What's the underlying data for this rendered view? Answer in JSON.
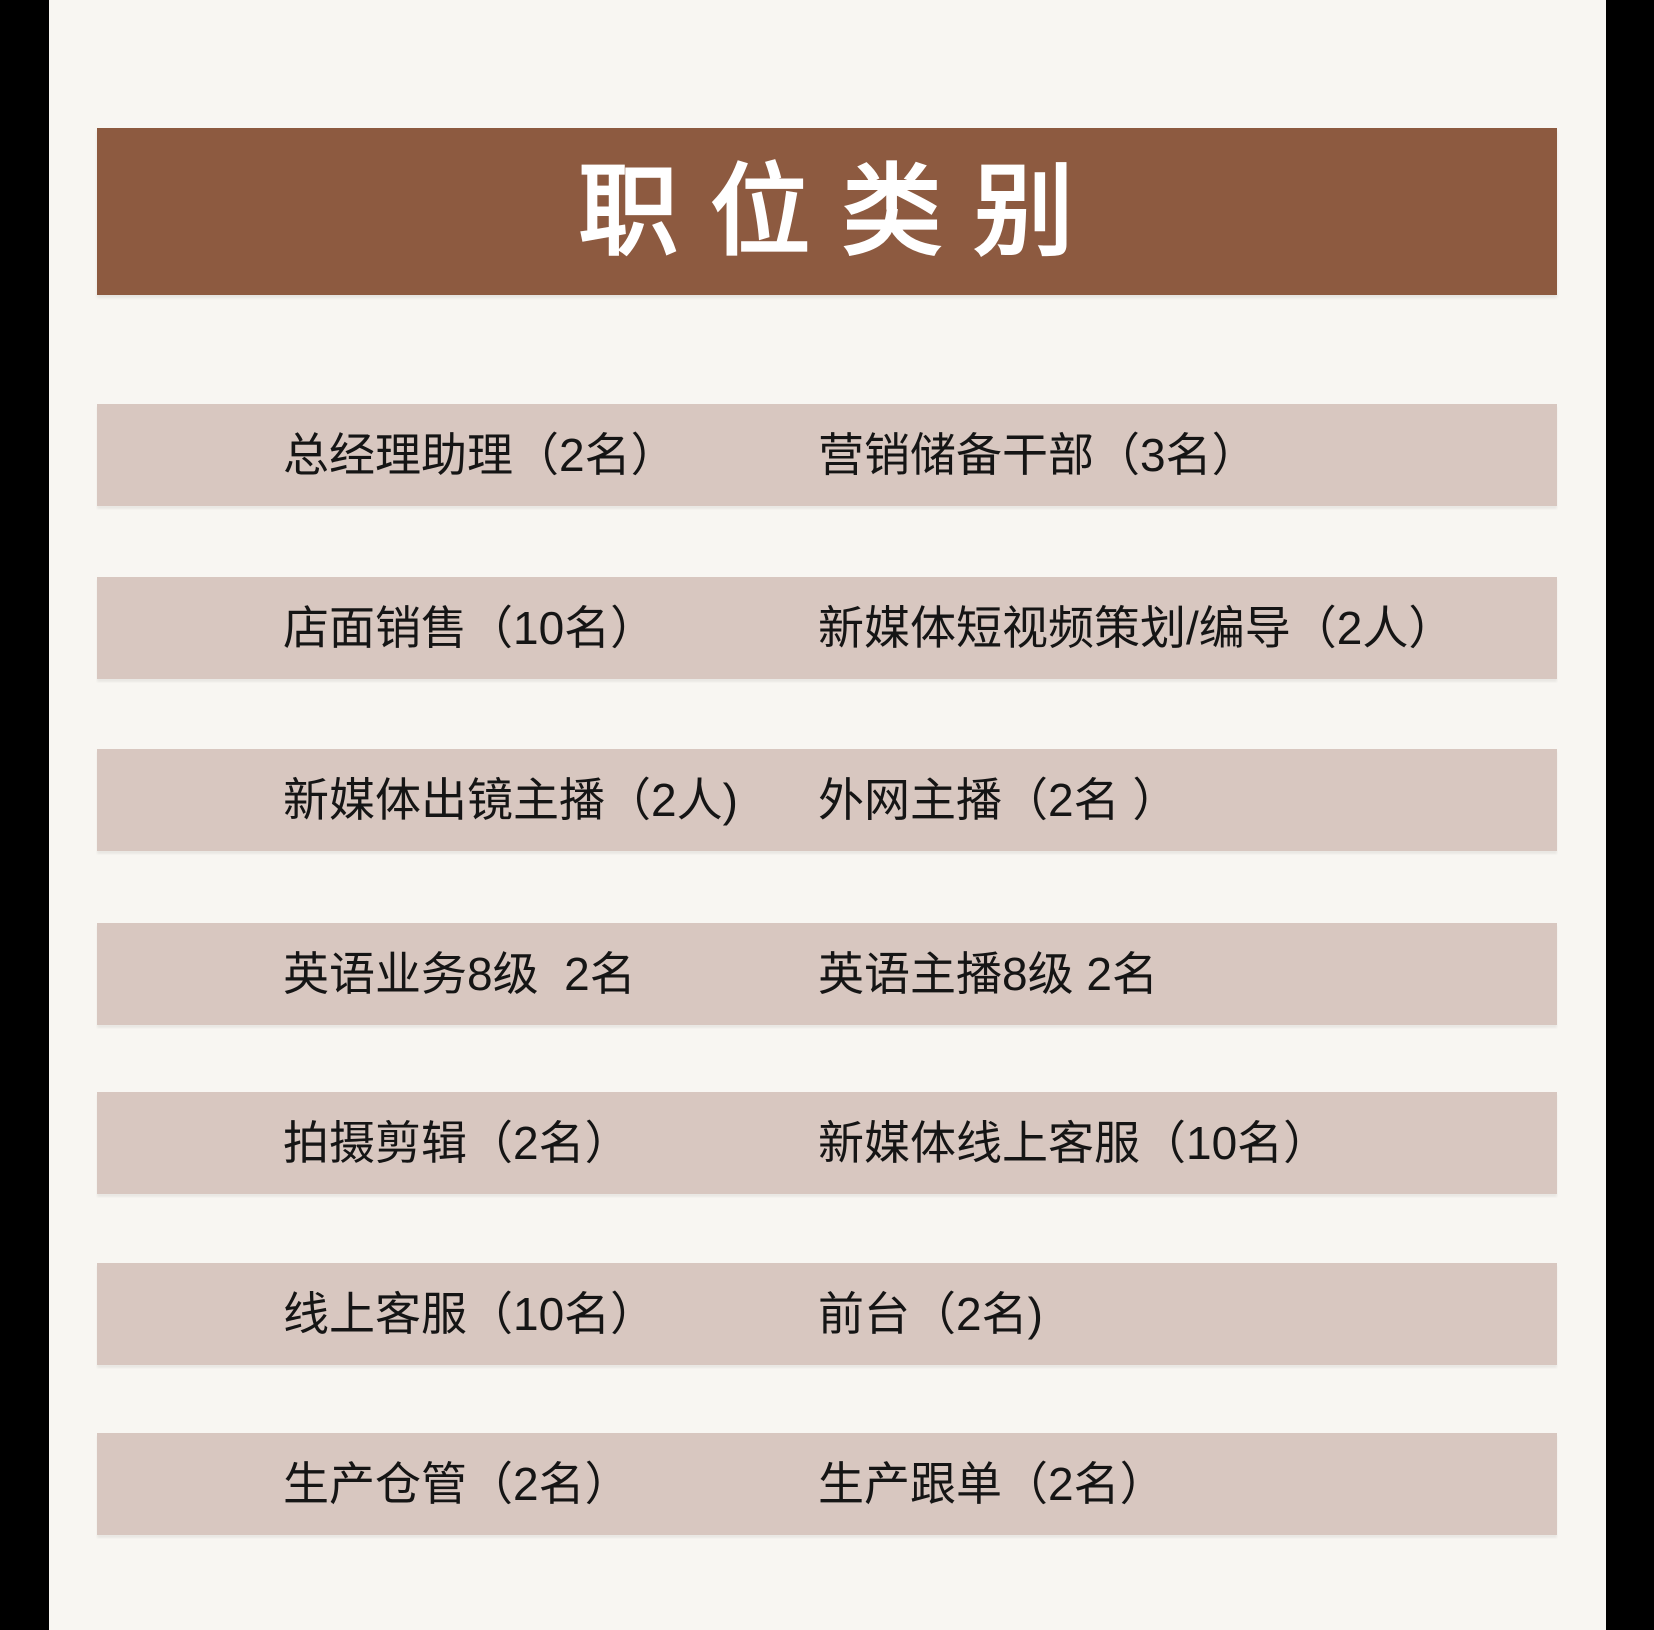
{
  "page": {
    "background_color": "#f8f6f2",
    "edge_bar_color": "#000000"
  },
  "header": {
    "title": "职 位 类 别",
    "background_color": "#8d5a40",
    "text_color": "#ffffff"
  },
  "rows": [
    {
      "col1": "总经理助理（2名）",
      "col2": "营销储备干部（3名）"
    },
    {
      "col1": "店面销售（10名）",
      "col2": "新媒体短视频策划/编导（2人）"
    },
    {
      "col1": "新媒体出镜主播（2人)",
      "col2": "外网主播（2名 ）"
    },
    {
      "col1": "英语业务8级  2名",
      "col2": "英语主播8级 2名"
    },
    {
      "col1": "拍摄剪辑（2名）",
      "col2": "新媒体线上客服（10名）"
    },
    {
      "col1": "线上客服（10名）",
      "col2": "前台（2名)"
    },
    {
      "col1": "生产仓管（2名）",
      "col2": "生产跟单（2名）"
    }
  ],
  "colors": {
    "row_background": "#d8c7c0",
    "row_text": "#151515"
  }
}
